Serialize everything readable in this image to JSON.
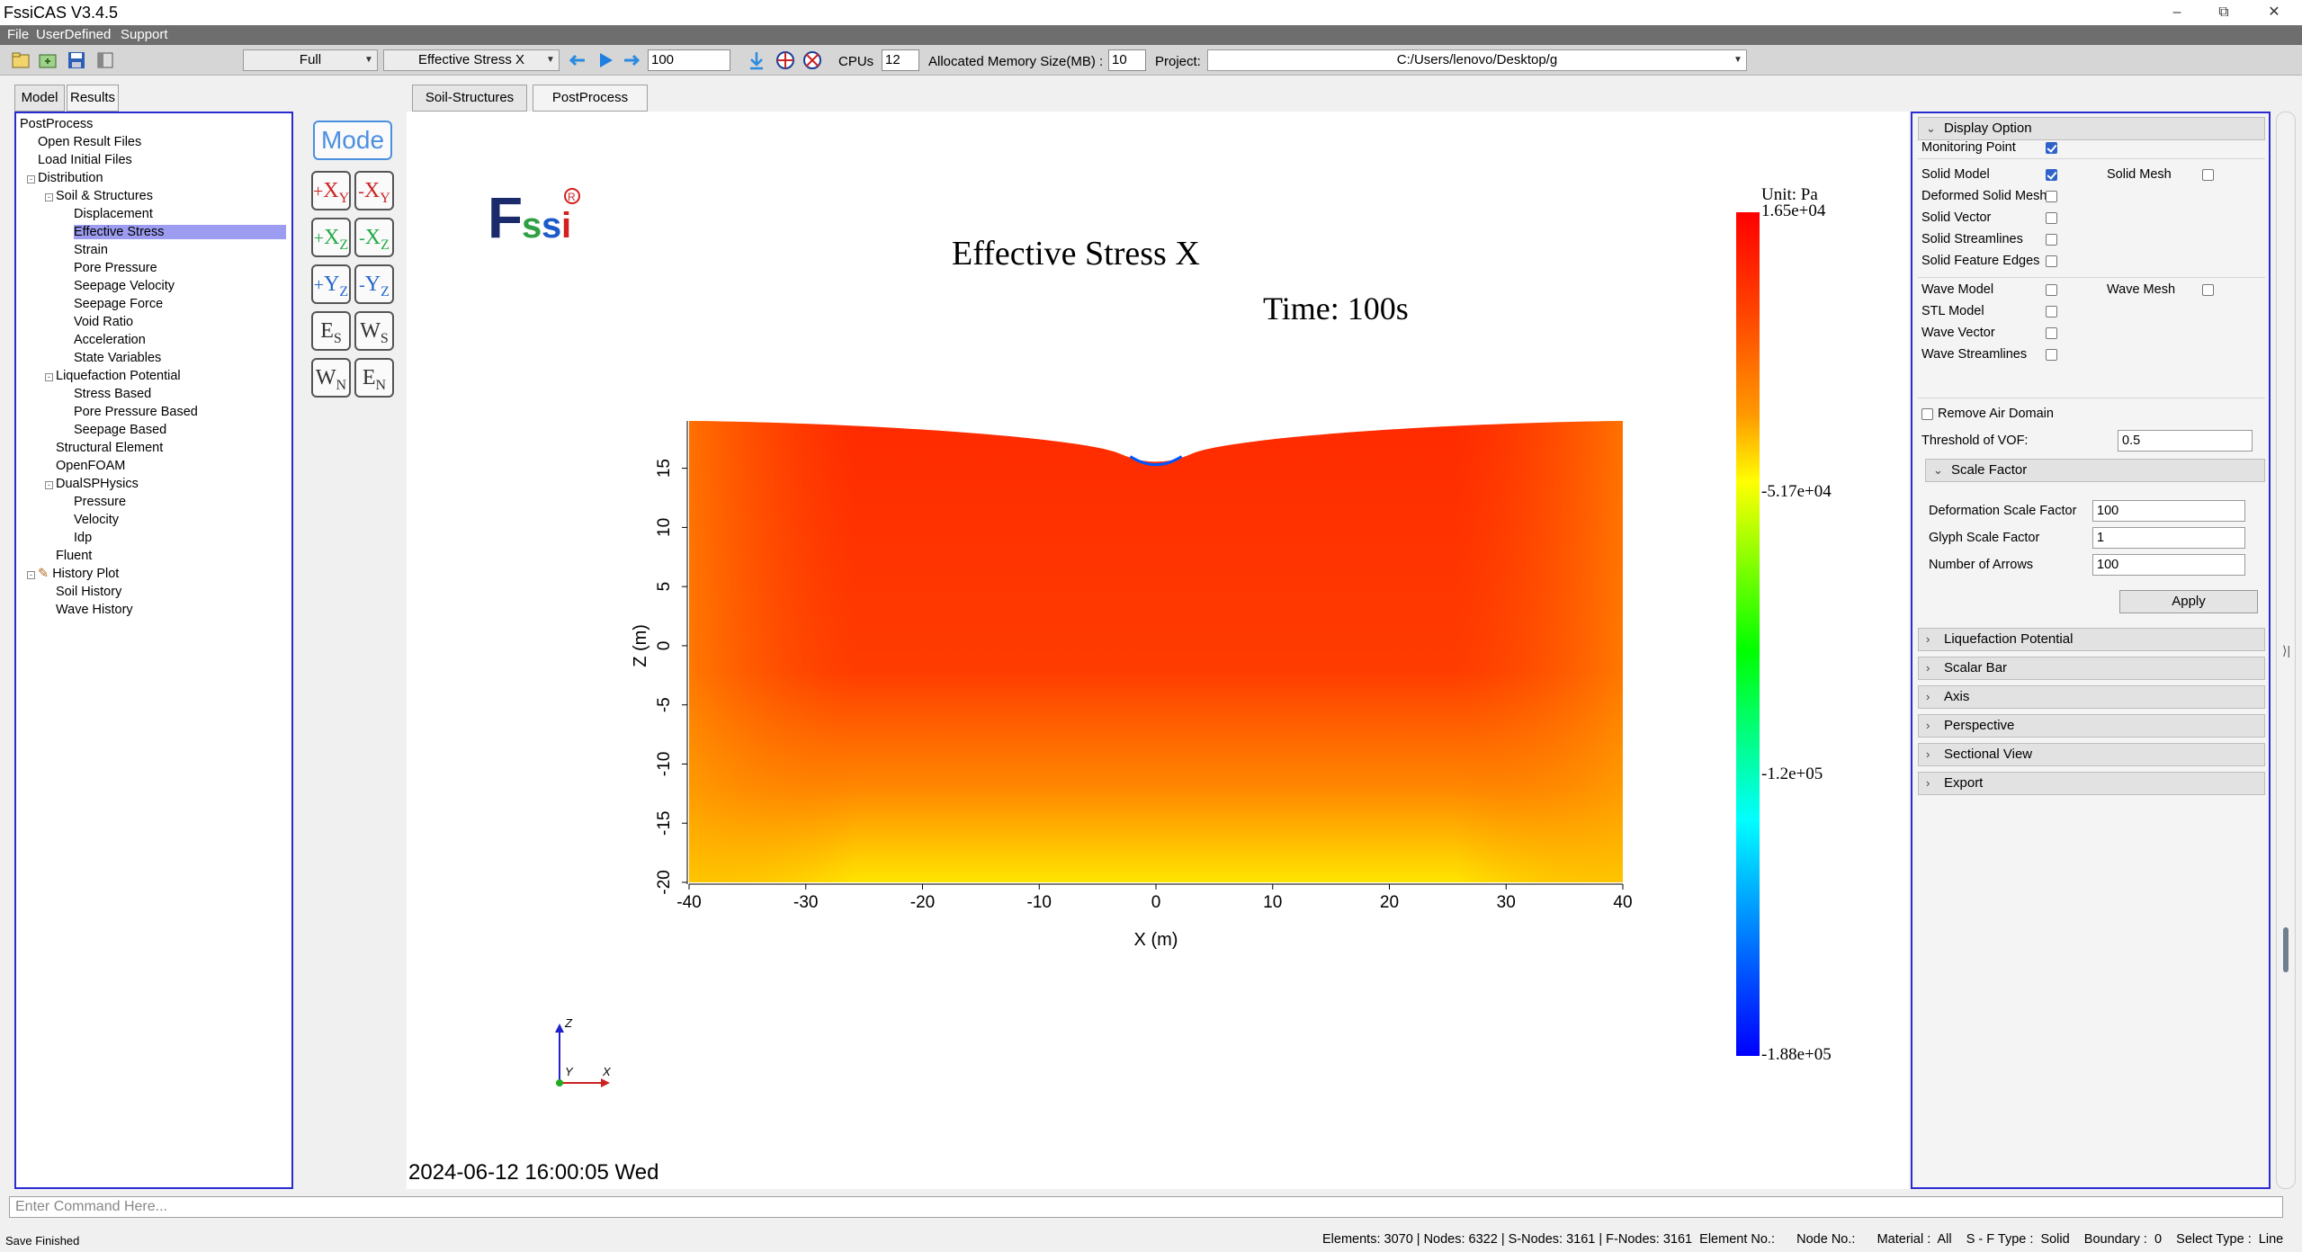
{
  "app": {
    "title": "FssiCAS V3.4.5"
  },
  "menu": [
    "File",
    "UserDefined",
    "Support"
  ],
  "toolbar": {
    "view_mode": "Full",
    "result_field": "Effective Stress X",
    "step_value": "100",
    "cpus_label": "CPUs",
    "cpus_value": "12",
    "memory_label": "Allocated Memory Size(MB) :",
    "memory_value": "10",
    "project_label": "Project:",
    "project_path": "C:/Users/lenovo/Desktop/g"
  },
  "left_tabs": [
    "Model",
    "Results"
  ],
  "main_tabs": [
    "Soil-Structures",
    "PostProcess"
  ],
  "tree": [
    {
      "label": "PostProcess",
      "level": 0
    },
    {
      "label": "Open Result Files",
      "level": 1
    },
    {
      "label": "Load Initial Files",
      "level": 1
    },
    {
      "label": "Distribution",
      "level": 1,
      "toggle": "-"
    },
    {
      "label": "Soil & Structures",
      "level": 2,
      "toggle": "-"
    },
    {
      "label": "Displacement",
      "level": 3
    },
    {
      "label": "Effective Stress",
      "level": 3,
      "selected": true
    },
    {
      "label": "Strain",
      "level": 3
    },
    {
      "label": "Pore Pressure",
      "level": 3
    },
    {
      "label": "Seepage Velocity",
      "level": 3
    },
    {
      "label": "Seepage Force",
      "level": 3
    },
    {
      "label": "Void Ratio",
      "level": 3
    },
    {
      "label": "Acceleration",
      "level": 3
    },
    {
      "label": "State Variables",
      "level": 3
    },
    {
      "label": "Liquefaction Potential",
      "level": 2,
      "toggle": "-"
    },
    {
      "label": "Stress Based",
      "level": 3
    },
    {
      "label": "Pore Pressure Based",
      "level": 3
    },
    {
      "label": "Seepage Based",
      "level": 3
    },
    {
      "label": "Structural Element",
      "level": 2
    },
    {
      "label": "OpenFOAM",
      "level": 2
    },
    {
      "label": "DualSPHysics",
      "level": 2,
      "toggle": "-"
    },
    {
      "label": "Pressure",
      "level": 3
    },
    {
      "label": "Velocity",
      "level": 3
    },
    {
      "label": "Idp",
      "level": 3
    },
    {
      "label": "Fluent",
      "level": 2
    },
    {
      "label": "History Plot",
      "level": 1,
      "toggle": "-",
      "icon": true
    },
    {
      "label": "Soil History",
      "level": 2
    },
    {
      "label": "Wave History",
      "level": 2
    }
  ],
  "view_buttons": {
    "mode": "Mode",
    "items": [
      {
        "main": "X",
        "sub": "Y",
        "sign": "+",
        "color": "#cc2222"
      },
      {
        "main": "X",
        "sub": "Y",
        "sign": "-",
        "color": "#cc2222"
      },
      {
        "main": "X",
        "sub": "Z",
        "sign": "+",
        "color": "#22aa44"
      },
      {
        "main": "X",
        "sub": "Z",
        "sign": "-",
        "color": "#22aa44"
      },
      {
        "main": "Y",
        "sub": "Z",
        "sign": "+",
        "color": "#2266cc"
      },
      {
        "main": "Y",
        "sub": "Z",
        "sign": "-",
        "color": "#2266cc"
      },
      {
        "main": "E",
        "sub": "S",
        "sign": "",
        "color": "#333333"
      },
      {
        "main": "W",
        "sub": "S",
        "sign": "",
        "color": "#333333"
      },
      {
        "main": "W",
        "sub": "N",
        "sign": "",
        "color": "#333333"
      },
      {
        "main": "E",
        "sub": "N",
        "sign": "",
        "color": "#333333"
      }
    ]
  },
  "viewport": {
    "logo_text": "Fssi",
    "plot_title": "Effective Stress X",
    "time_label": "Time: 100s",
    "x_axis_label": "X (m)",
    "z_axis_label": "Z (m)",
    "x_ticks": [
      "-40",
      "-30",
      "-20",
      "-10",
      "0",
      "10",
      "20",
      "30",
      "40"
    ],
    "z_ticks": [
      "15",
      "10",
      "5",
      "0",
      "-5",
      "-10",
      "-15",
      "-20"
    ],
    "timestamp": "2024-06-12 16:00:05 Wed",
    "axes_triad": {
      "z": "Z",
      "y": "Y",
      "x": "X"
    }
  },
  "colorbar": {
    "unit": "Unit:  Pa",
    "labels": [
      "1.65e+04",
      "-5.17e+04",
      "-1.2e+05",
      "-1.88e+05"
    ],
    "colors": [
      "#ff0000",
      "#ff6600",
      "#ffff00",
      "#00ff00",
      "#00ffff",
      "#0000ff"
    ]
  },
  "chart_data": {
    "type": "heatmap",
    "title": "Effective Stress X",
    "xlabel": "X (m)",
    "ylabel": "Z (m)",
    "xlim": [
      -40,
      40
    ],
    "ylim": [
      -20,
      19
    ],
    "colorbar_range": [
      -188000,
      16500
    ]
  },
  "display_option": {
    "header": "Display Option",
    "items": [
      {
        "label": "Monitoring Point",
        "checked": true
      },
      {
        "label": "Solid Model",
        "checked": true
      },
      {
        "label": "Solid Mesh",
        "checked": false
      },
      {
        "label": "Deformed Solid Mesh",
        "checked": false
      },
      {
        "label": "Solid Vector",
        "checked": false
      },
      {
        "label": "Solid Streamlines",
        "checked": false
      },
      {
        "label": "Solid Feature Edges",
        "checked": false
      },
      {
        "label": "Wave Model",
        "checked": false
      },
      {
        "label": "Wave Mesh",
        "checked": false
      },
      {
        "label": "STL Model",
        "checked": false
      },
      {
        "label": "Wave Vector",
        "checked": false
      },
      {
        "label": "Wave Streamlines",
        "checked": false
      }
    ],
    "remove_air_label": "Remove Air Domain",
    "threshold_label": "Threshold of VOF:",
    "threshold_value": "0.5",
    "scale_factor": {
      "header": "Scale Factor",
      "deformation_label": "Deformation Scale Factor",
      "deformation_value": "100",
      "glyph_label": "Glyph Scale Factor",
      "glyph_value": "1",
      "arrows_label": "Number of Arrows",
      "arrows_value": "100",
      "apply_label": "Apply"
    },
    "collapsed_sections": [
      "Liquefaction Potential",
      "Scalar Bar",
      "Axis",
      "Perspective",
      "Sectional View",
      "Export"
    ]
  },
  "command": {
    "placeholder": "Enter Command Here..."
  },
  "status": {
    "left": "Save Finished",
    "right": "Elements: 3070 | Nodes: 6322 | S-Nodes: 3161 | F-Nodes: 3161  Element No.:      Node No.:      Material :  All    S - F Type :  Solid    Boundary :  0    Select Type :  Line"
  }
}
